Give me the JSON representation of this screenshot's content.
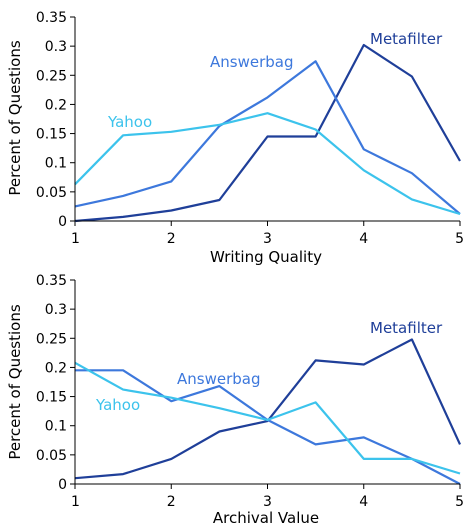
{
  "chart_data": [
    {
      "type": "line",
      "xlabel": "Writing Quality",
      "ylabel": "Percent of Questions",
      "xlim": [
        1,
        5
      ],
      "ylim": [
        0,
        0.35
      ],
      "x_ticks": [
        "1",
        "2",
        "3",
        "4",
        "5"
      ],
      "y_ticks": [
        "0",
        "0.05",
        "0.1",
        "0.15",
        "0.2",
        "0.25",
        "0.3",
        "0.35"
      ],
      "grid": false,
      "legend": "inline labels",
      "x": [
        1,
        1.5,
        2,
        2.5,
        3,
        3.5,
        4,
        4.5,
        5
      ],
      "series": [
        {
          "name": "Metafilter",
          "color": "#1f3f99",
          "values": [
            0.0,
            0.007,
            0.018,
            0.036,
            0.145,
            0.145,
            0.302,
            0.248,
            0.103
          ]
        },
        {
          "name": "Answerbag",
          "color": "#3d78dc",
          "values": [
            0.025,
            0.043,
            0.068,
            0.163,
            0.212,
            0.274,
            0.123,
            0.082,
            0.012
          ]
        },
        {
          "name": "Yahoo",
          "color": "#3cc3ec",
          "values": [
            0.063,
            0.147,
            0.153,
            0.165,
            0.185,
            0.157,
            0.087,
            0.037,
            0.012
          ]
        }
      ]
    },
    {
      "type": "line",
      "xlabel": "Archival Value",
      "ylabel": "Percent of Questions",
      "xlim": [
        1,
        5
      ],
      "ylim": [
        0,
        0.35
      ],
      "x_ticks": [
        "1",
        "2",
        "3",
        "4",
        "5"
      ],
      "y_ticks": [
        "0",
        "0.05",
        "0.1",
        "0.15",
        "0.2",
        "0.25",
        "0.3",
        "0.35"
      ],
      "grid": false,
      "legend": "inline labels",
      "x": [
        1,
        1.5,
        2,
        2.5,
        3,
        3.5,
        4,
        4.5,
        5
      ],
      "series": [
        {
          "name": "Metafilter",
          "color": "#1f3f99",
          "values": [
            0.01,
            0.017,
            0.043,
            0.09,
            0.108,
            0.212,
            0.205,
            0.248,
            0.068
          ]
        },
        {
          "name": "Answerbag",
          "color": "#3d78dc",
          "values": [
            0.195,
            0.195,
            0.142,
            0.168,
            0.11,
            0.068,
            0.08,
            0.043,
            0.0
          ]
        },
        {
          "name": "Yahoo",
          "color": "#3cc3ec",
          "values": [
            0.208,
            0.162,
            0.148,
            0.13,
            0.11,
            0.14,
            0.043,
            0.043,
            0.018
          ]
        }
      ]
    }
  ]
}
